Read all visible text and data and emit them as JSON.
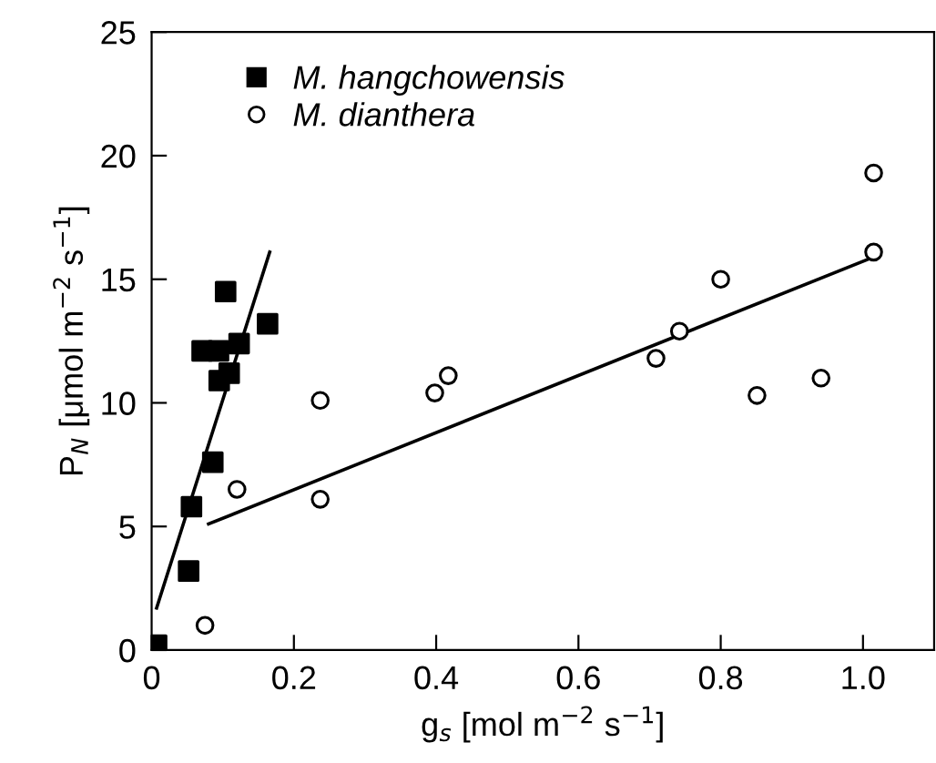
{
  "chart_data": {
    "type": "scatter",
    "xlabel": "g$_{s}$ [mol m$^{−2}$ s$^{−1}$]",
    "ylabel": "P$_{N}$ [μmol m$^{−2}$ s$^{−1}$]",
    "xlim": [
      0,
      1.1
    ],
    "xticks": [
      0,
      {
        "value": 0.2,
        "label": "0.2"
      },
      {
        "value": 0.4,
        "label": "0.4"
      },
      {
        "value": 0.6,
        "label": "0.6"
      },
      {
        "value": 0.8,
        "label": "0.8"
      },
      {
        "value": 1.0,
        "label": "1.0"
      }
    ],
    "ylim": [
      0,
      25
    ],
    "yticks": [
      0,
      5,
      10,
      15,
      20,
      25
    ],
    "grid": false,
    "legend": "top left",
    "series": [
      {
        "name": "M. hangchowensis",
        "color": "#000000",
        "marker": "square",
        "x": [
          0.007,
          0.052,
          0.056,
          0.086,
          0.071,
          0.094,
          0.095,
          0.109,
          0.104,
          0.123,
          0.163
        ],
        "values": [
          0.2,
          3.2,
          5.8,
          7.6,
          12.1,
          12.1,
          10.9,
          11.2,
          14.5,
          12.4,
          13.2
        ]
      },
      {
        "name": "M. dianthera",
        "color": "#ffffff",
        "marker": "circle",
        "x": [
          0.075,
          0.12,
          0.237,
          0.237,
          0.398,
          0.417,
          0.709,
          0.742,
          0.8,
          0.851,
          0.941,
          1.015,
          1.015
        ],
        "values": [
          1.0,
          6.5,
          10.1,
          6.1,
          10.4,
          11.1,
          11.8,
          12.9,
          15.0,
          10.3,
          11.0,
          19.3,
          16.1
        ]
      },
      {
        "type": "line",
        "color": "#000000",
        "line_style": "solid",
        "x": [
          0.007,
          0.166
        ],
        "values": [
          1.7,
          16.1
        ]
      },
      {
        "type": "line",
        "color": "#000000",
        "line_style": "solid",
        "x": [
          0.08,
          1.015
        ],
        "values": [
          5.1,
          15.9
        ]
      }
    ]
  }
}
